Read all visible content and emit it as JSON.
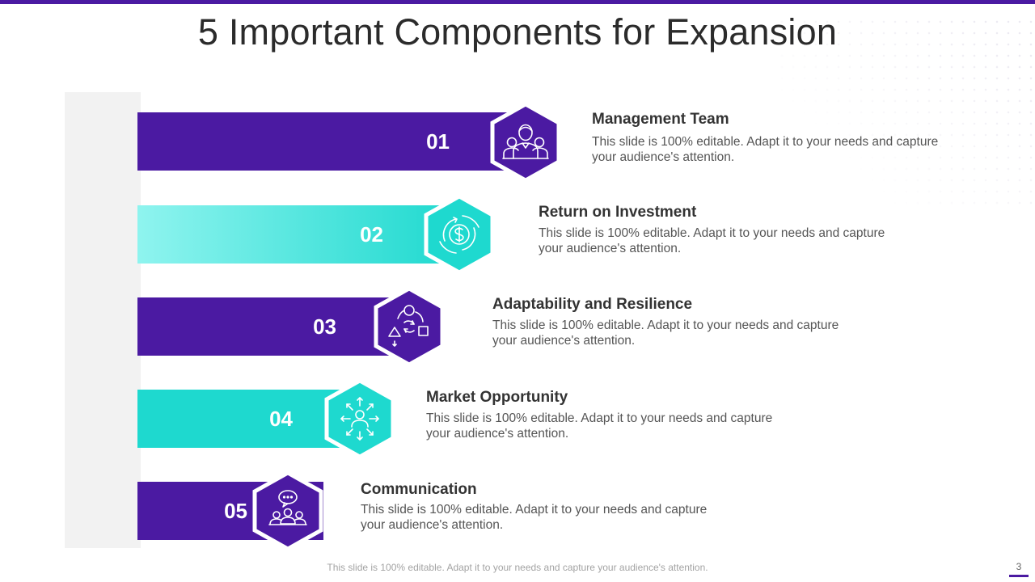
{
  "title": "5 Important Components for Expansion",
  "items": [
    {
      "number": "01",
      "title": "Management Team",
      "description": "This slide is 100% editable. Adapt it to your needs and capture your audience's attention.",
      "icon": "management-team-icon",
      "color": "#4b1aa2"
    },
    {
      "number": "02",
      "title": "Return on Investment",
      "description": "This slide is 100% editable. Adapt it to your needs and capture your audience's attention.",
      "icon": "dollar-cycle-icon",
      "color": "#1ed9cf"
    },
    {
      "number": "03",
      "title": "Adaptability and Resilience",
      "description": "This slide is 100% editable. Adapt it to your needs and capture your audience's attention.",
      "icon": "shapes-cycle-icon",
      "color": "#4b1aa2"
    },
    {
      "number": "04",
      "title": "Market Opportunity",
      "description": "This slide is 100% editable. Adapt it to your needs and capture your audience's attention.",
      "icon": "person-arrows-icon",
      "color": "#1ed9cf"
    },
    {
      "number": "05",
      "title": "Communication",
      "description": "This slide is 100% editable. Adapt it to your needs and capture your audience's attention.",
      "icon": "group-chat-icon",
      "color": "#4b1aa2"
    }
  ],
  "footer": "This slide is 100% editable. Adapt it to your needs and capture your audience's attention.",
  "page_number": "3"
}
